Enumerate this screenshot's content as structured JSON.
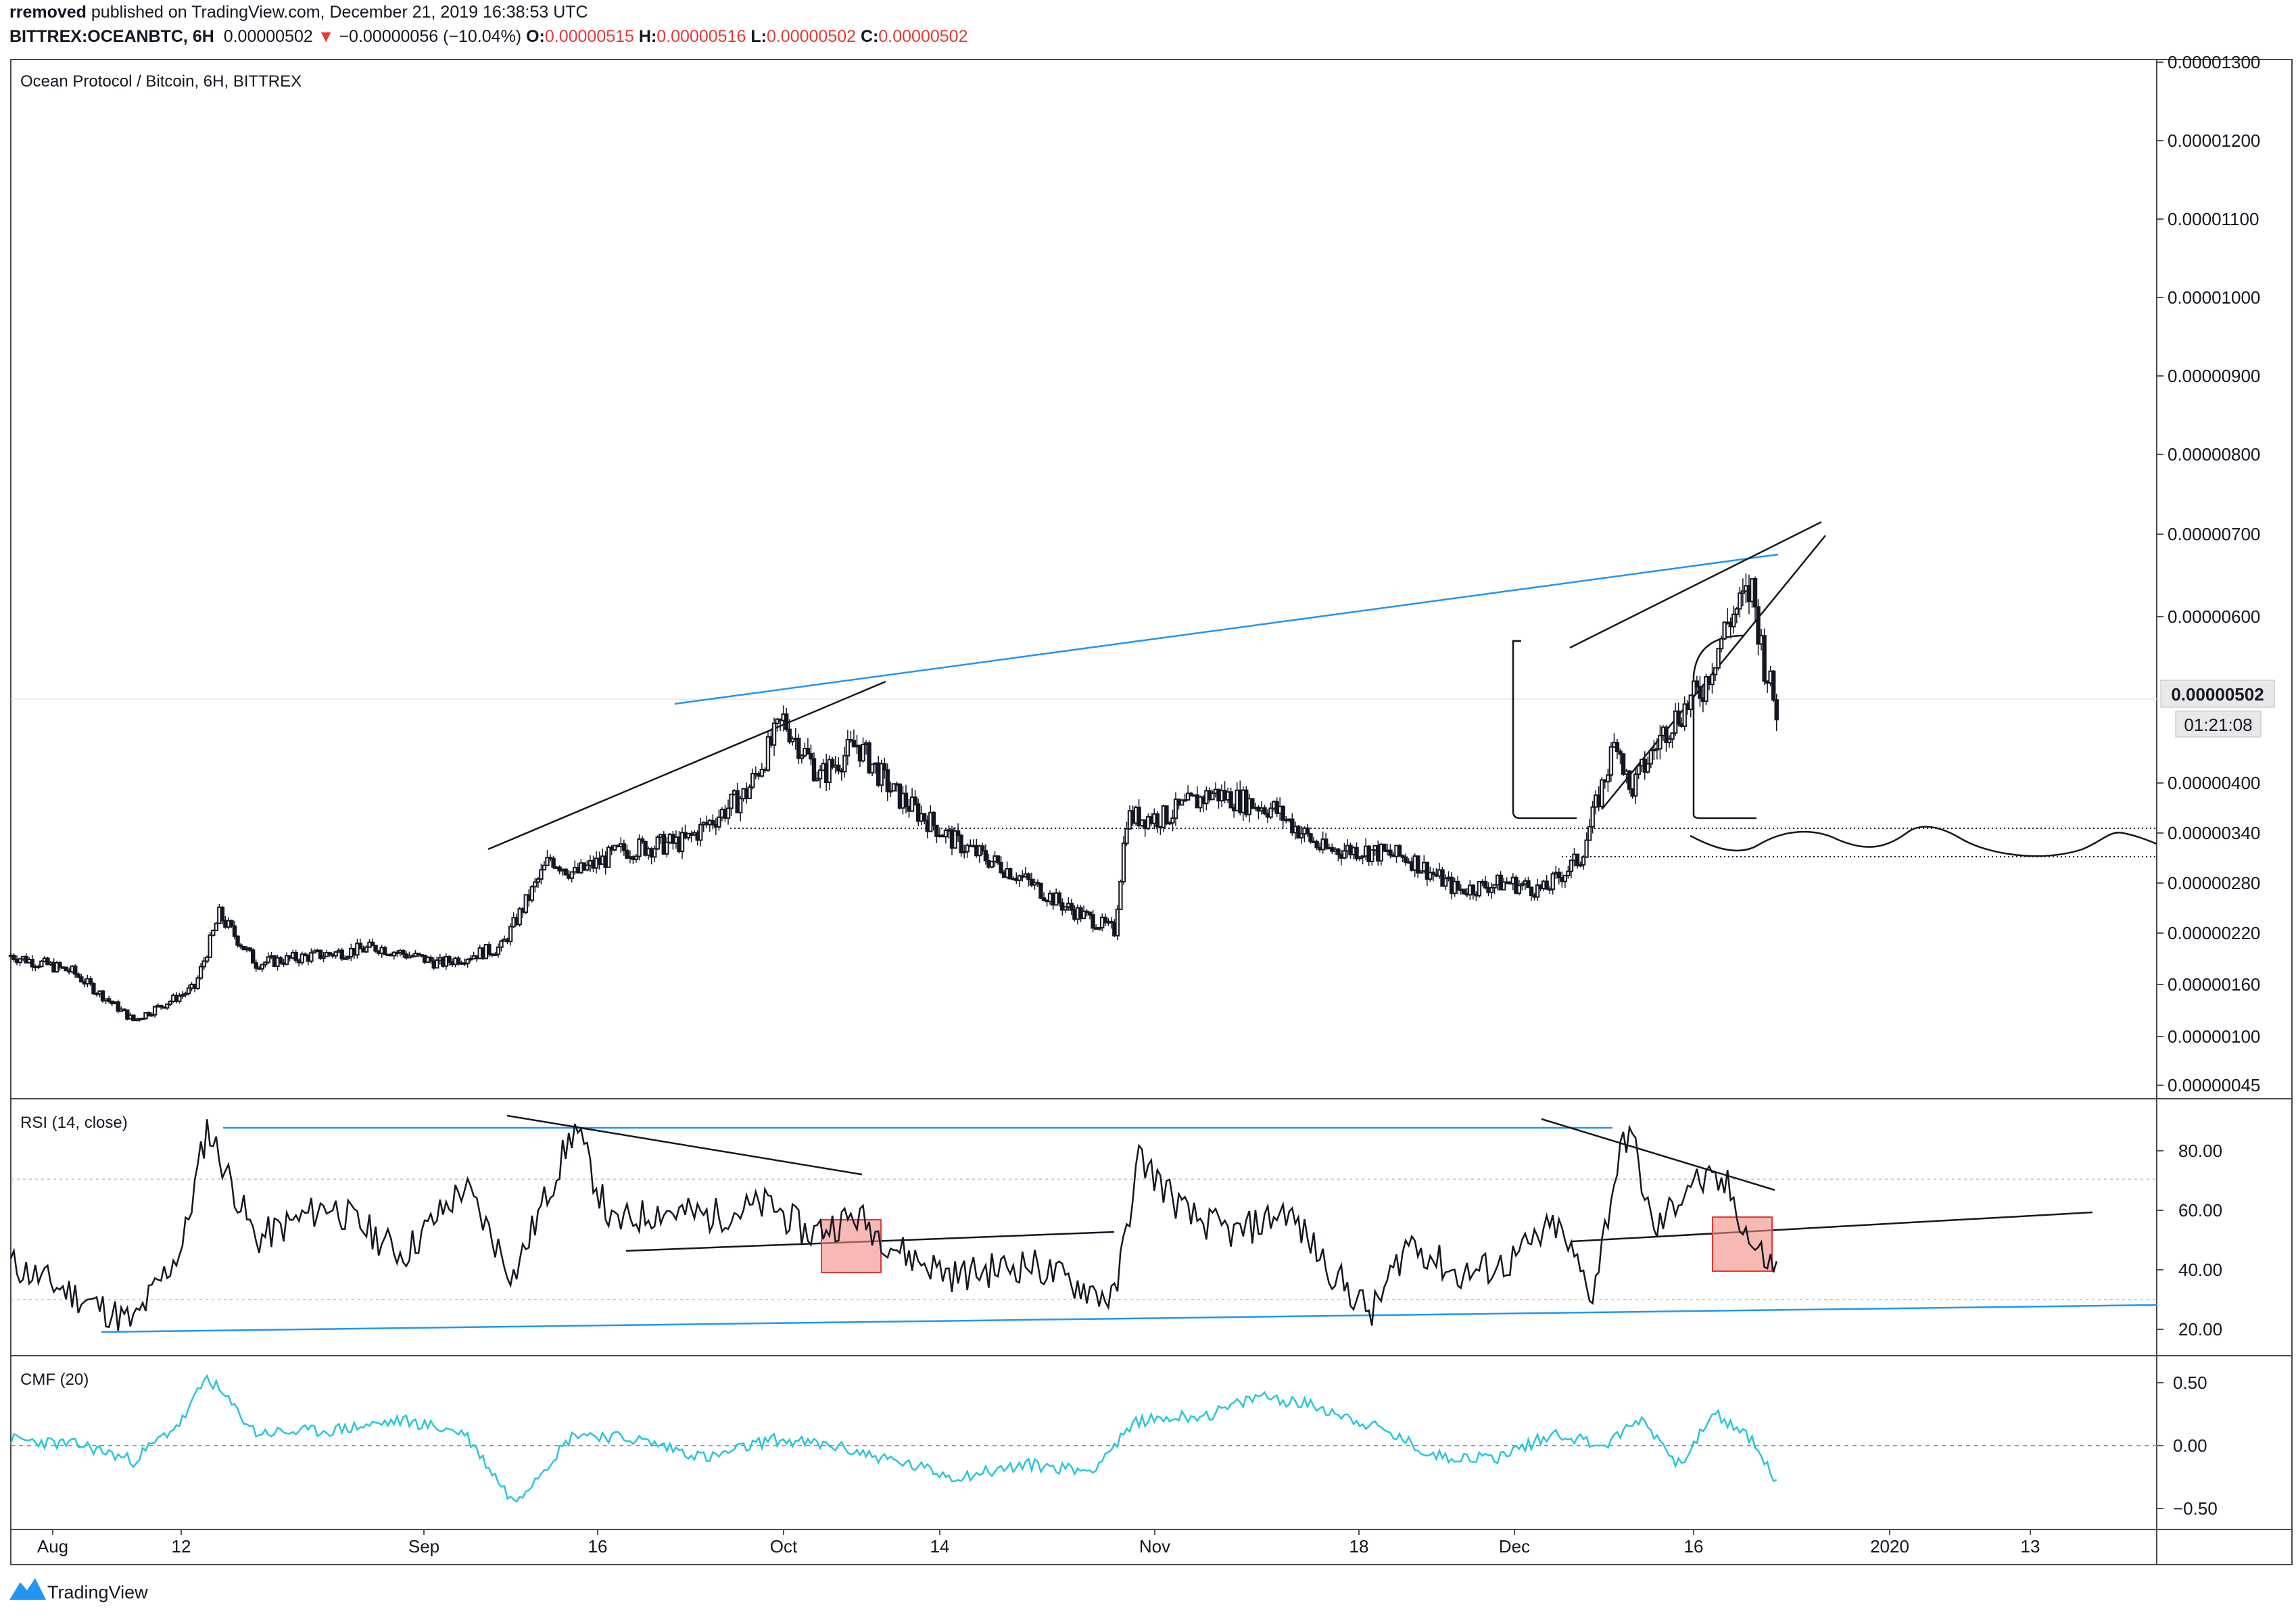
{
  "header": {
    "author": "rremoved",
    "published_text": "published on TradingView.com, December 21, 2019 16:38:53 UTC",
    "symbol": "BITTREX:OCEANBTC, 6H",
    "last": "0.00000502",
    "change_arrow": "▼",
    "change": "−0.00000056 (−10.04%)",
    "o_label": "O:",
    "o_value": "0.00000515",
    "h_label": "H:",
    "h_value": "0.00000516",
    "l_label": "L:",
    "l_value": "0.00000502",
    "c_label": "C:",
    "c_value": "0.00000502"
  },
  "main_pane": {
    "title": "Ocean Protocol / Bitcoin, 6H, BITTREX",
    "price_ticks": [
      "0.00001300",
      "0.00001200",
      "0.00001100",
      "0.00001000",
      "0.00000900",
      "0.00000800",
      "0.00000700",
      "0.00000600",
      "0.00000502",
      "0.00000400",
      "0.00000340",
      "0.00000280",
      "0.00000220",
      "0.00000160",
      "0.00000100",
      "0.00000045"
    ],
    "current_price": "0.00000502",
    "countdown": "01:21:08"
  },
  "rsi_pane": {
    "title": "RSI (14, close)",
    "ticks": [
      "80.00",
      "60.00",
      "40.00",
      "20.00"
    ]
  },
  "cmf_pane": {
    "title": "CMF (20)",
    "ticks": [
      "0.50",
      "0.00",
      "−0.50"
    ]
  },
  "x_axis": {
    "labels": [
      "Aug",
      "12",
      "Sep",
      "16",
      "Oct",
      "14",
      "Nov",
      "18",
      "Dec",
      "16",
      "2020",
      "13"
    ]
  },
  "footer": {
    "brand": "TradingView"
  },
  "colors": {
    "accent_blue": "#2196f3",
    "cmf": "#26c6da",
    "down_red": "#e53935"
  },
  "chart_data": [
    {
      "type": "candlestick",
      "title": "Ocean Protocol / Bitcoin, 6H, BITTREX",
      "x_range": [
        "2019-07-29",
        "2020-01-20"
      ],
      "ylim": [
        4e-07,
        1.31e-05
      ],
      "series": [
        {
          "x": [
            "2019-07-29",
            "2019-08-03",
            "2019-08-08",
            "2019-08-13",
            "2019-08-15",
            "2019-08-18",
            "2019-08-23",
            "2019-08-28",
            "2019-09-02",
            "2019-09-07",
            "2019-09-11",
            "2019-09-13",
            "2019-09-17",
            "2019-09-22",
            "2019-09-27",
            "2019-09-30",
            "2019-10-03",
            "2019-10-06",
            "2019-10-09",
            "2019-10-14",
            "2019-10-19",
            "2019-10-23",
            "2019-10-27",
            "2019-10-28",
            "2019-10-31",
            "2019-11-04",
            "2019-11-09",
            "2019-11-13",
            "2019-11-16",
            "2019-11-20",
            "2019-11-24",
            "2019-11-28",
            "2019-12-01",
            "2019-12-04",
            "2019-12-06",
            "2019-12-07",
            "2019-12-08",
            "2019-12-11",
            "2019-12-14",
            "2019-12-16",
            "2019-12-18",
            "2019-12-19",
            "2019-12-20"
          ],
          "close": [
            2e-06,
            1.8e-06,
            1.2e-06,
            1.6e-06,
            2.5e-06,
            1.9e-06,
            2e-06,
            2.1e-06,
            1.9e-06,
            2.1e-06,
            3.2e-06,
            3e-06,
            3.3e-06,
            3.4e-06,
            4e-06,
            4.9e-06,
            4.2e-06,
            4.6e-06,
            4e-06,
            3.4e-06,
            3e-06,
            2.6e-06,
            2.3e-06,
            3.7e-06,
            3.7e-06,
            4e-06,
            3.8e-06,
            3.3e-06,
            3.3e-06,
            3.2e-06,
            2.8e-06,
            2.9e-06,
            2.8e-06,
            3.2e-06,
            4.2e-06,
            4.7e-06,
            4e-06,
            4.8e-06,
            5.3e-06,
            6.1e-06,
            6.5e-06,
            5.6e-06,
            5.02e-06
          ]
        }
      ],
      "annotations": [
        "rising wedge",
        "ascending trendline",
        "dotted support 0.00000340"
      ]
    },
    {
      "type": "line",
      "title": "RSI (14, close)",
      "ylim": [
        15,
        93
      ],
      "bands": [
        70,
        30
      ],
      "series": [
        {
          "x": [
            "2019-07-29",
            "2019-08-04",
            "2019-08-08",
            "2019-08-12",
            "2019-08-14",
            "2019-08-18",
            "2019-08-24",
            "2019-08-30",
            "2019-09-04",
            "2019-09-08",
            "2019-09-13",
            "2019-09-16",
            "2019-09-20",
            "2019-09-24",
            "2019-09-29",
            "2019-10-02",
            "2019-10-06",
            "2019-10-10",
            "2019-10-14",
            "2019-10-20",
            "2019-10-24",
            "2019-10-27",
            "2019-10-29",
            "2019-11-02",
            "2019-11-06",
            "2019-11-10",
            "2019-11-14",
            "2019-11-17",
            "2019-11-20",
            "2019-11-24",
            "2019-11-28",
            "2019-12-02",
            "2019-12-05",
            "2019-12-07",
            "2019-12-08",
            "2019-12-10",
            "2019-12-13",
            "2019-12-16",
            "2019-12-18",
            "2019-12-20"
          ],
          "values": [
            42,
            30,
            22,
            48,
            88,
            50,
            62,
            45,
            68,
            38,
            88,
            55,
            60,
            58,
            62,
            52,
            58,
            45,
            38,
            42,
            35,
            30,
            78,
            58,
            52,
            60,
            38,
            25,
            50,
            38,
            42,
            55,
            32,
            75,
            88,
            52,
            70,
            68,
            48,
            40
          ]
        }
      ]
    },
    {
      "type": "line",
      "title": "CMF (20)",
      "ylim": [
        -0.6,
        0.6
      ],
      "series": [
        {
          "x": [
            "2019-07-29",
            "2019-08-04",
            "2019-08-08",
            "2019-08-12",
            "2019-08-14",
            "2019-08-18",
            "2019-08-24",
            "2019-08-30",
            "2019-09-04",
            "2019-09-08",
            "2019-09-13",
            "2019-09-18",
            "2019-09-24",
            "2019-09-29",
            "2019-10-04",
            "2019-10-09",
            "2019-10-14",
            "2019-10-20",
            "2019-10-25",
            "2019-10-29",
            "2019-11-04",
            "2019-11-08",
            "2019-11-13",
            "2019-11-18",
            "2019-11-22",
            "2019-11-27",
            "2019-12-02",
            "2019-12-06",
            "2019-12-09",
            "2019-12-12",
            "2019-12-15",
            "2019-12-18",
            "2019-12-20"
          ],
          "values": [
            0.05,
            0.0,
            -0.12,
            0.2,
            0.55,
            0.1,
            0.12,
            0.2,
            0.1,
            -0.45,
            0.1,
            0.05,
            -0.1,
            0.05,
            0.0,
            -0.12,
            -0.25,
            -0.15,
            -0.2,
            0.2,
            0.25,
            0.4,
            0.3,
            0.12,
            -0.08,
            -0.1,
            0.1,
            0.0,
            0.22,
            -0.15,
            0.25,
            0.05,
            -0.3
          ]
        }
      ]
    }
  ]
}
